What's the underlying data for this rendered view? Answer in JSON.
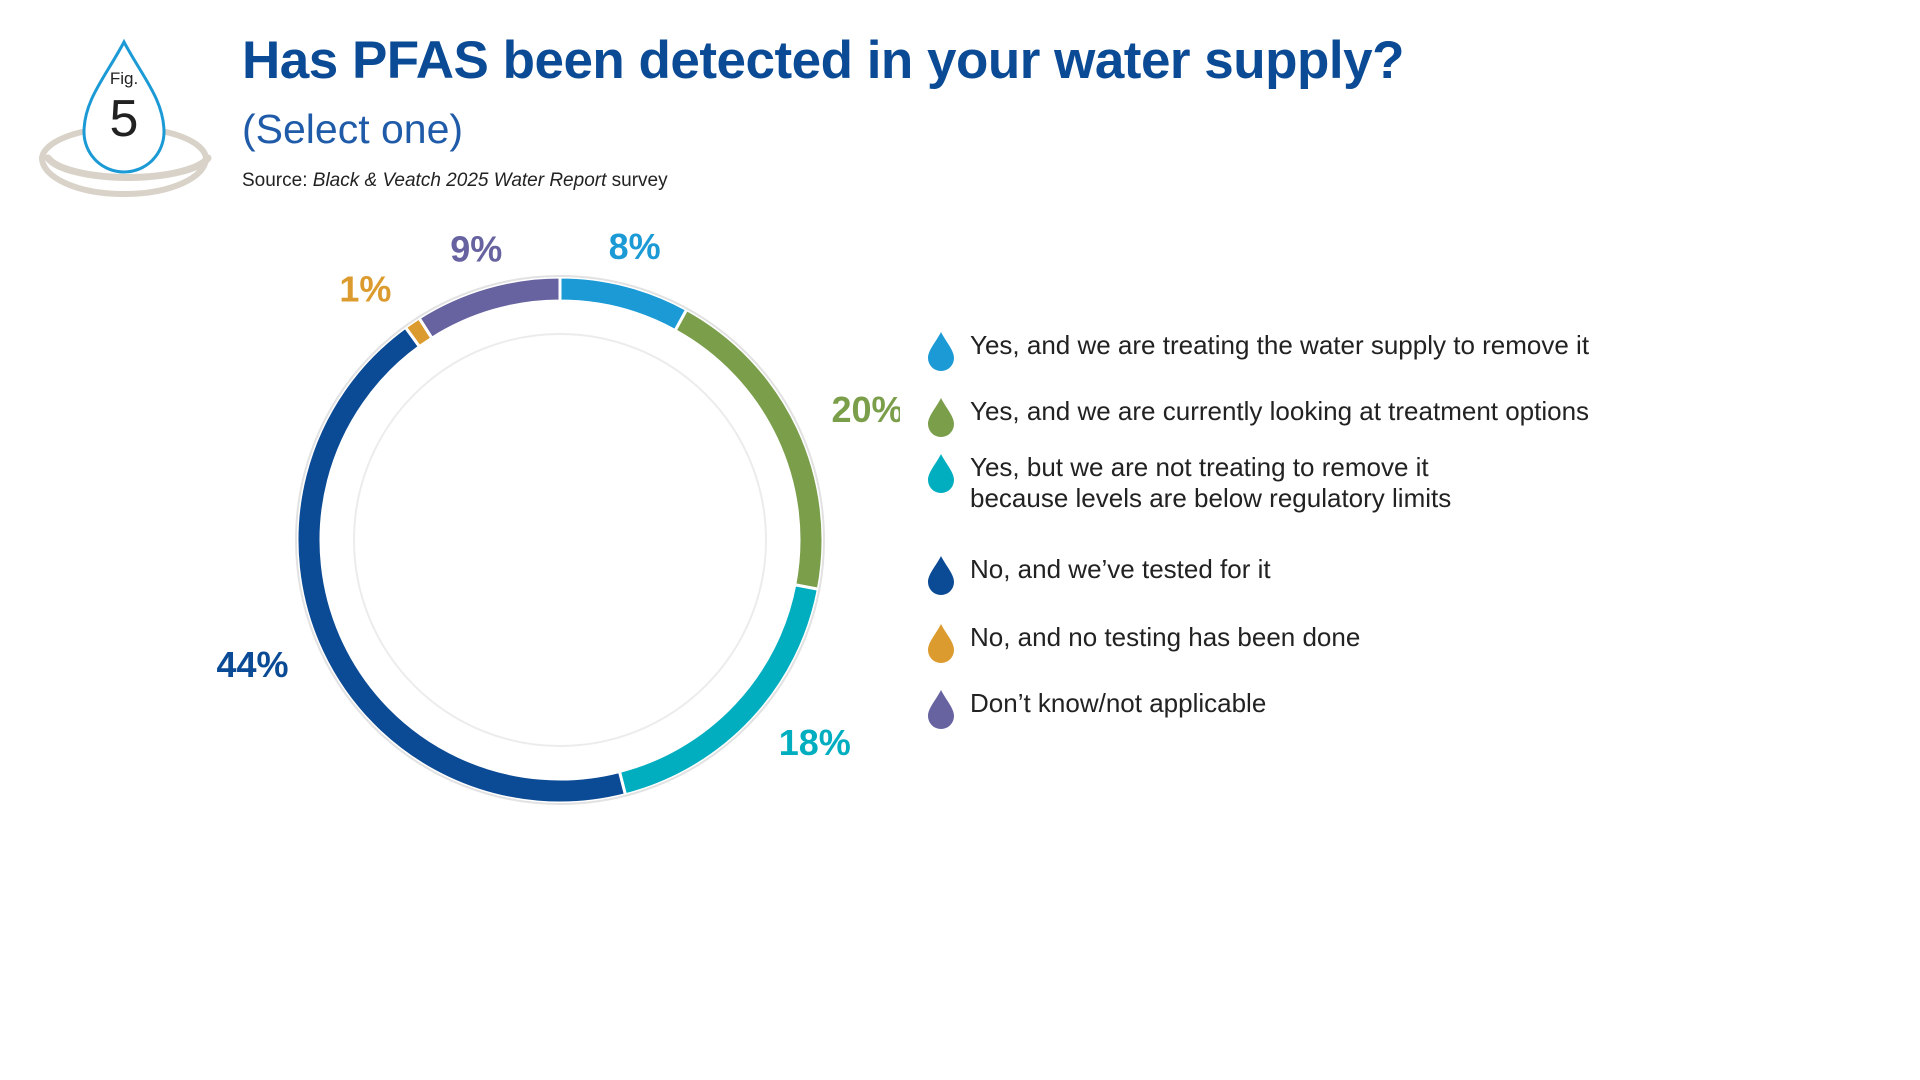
{
  "badge": {
    "fig_label": "Fig.",
    "fig_number": "5"
  },
  "header": {
    "title": "Has PFAS been detected in your water supply?",
    "subtitle": "(Select one)",
    "source_prefix": "Source: ",
    "source_title": "Black & Veatch 2025 Water Report",
    "source_suffix": " survey"
  },
  "chart_data": {
    "type": "pie",
    "donut": true,
    "categories": [
      "Yes, and we are treating the water supply to remove it",
      "Yes, and we are currently looking at treatment options",
      "Yes, but we are not treating to remove it\nbecause levels are below regulatory limits",
      "No, and we’ve tested for it",
      "No, and no testing has been done",
      "Don’t know/not applicable"
    ],
    "values": [
      8,
      20,
      18,
      44,
      1,
      9
    ],
    "value_labels": [
      "8%",
      "20%",
      "18%",
      "44%",
      "1%",
      "9%"
    ],
    "colors": [
      "#1b9ad6",
      "#7a9e4a",
      "#00aec0",
      "#0b4a94",
      "#dc9b2f",
      "#6763a0"
    ],
    "legend_position": "right"
  }
}
